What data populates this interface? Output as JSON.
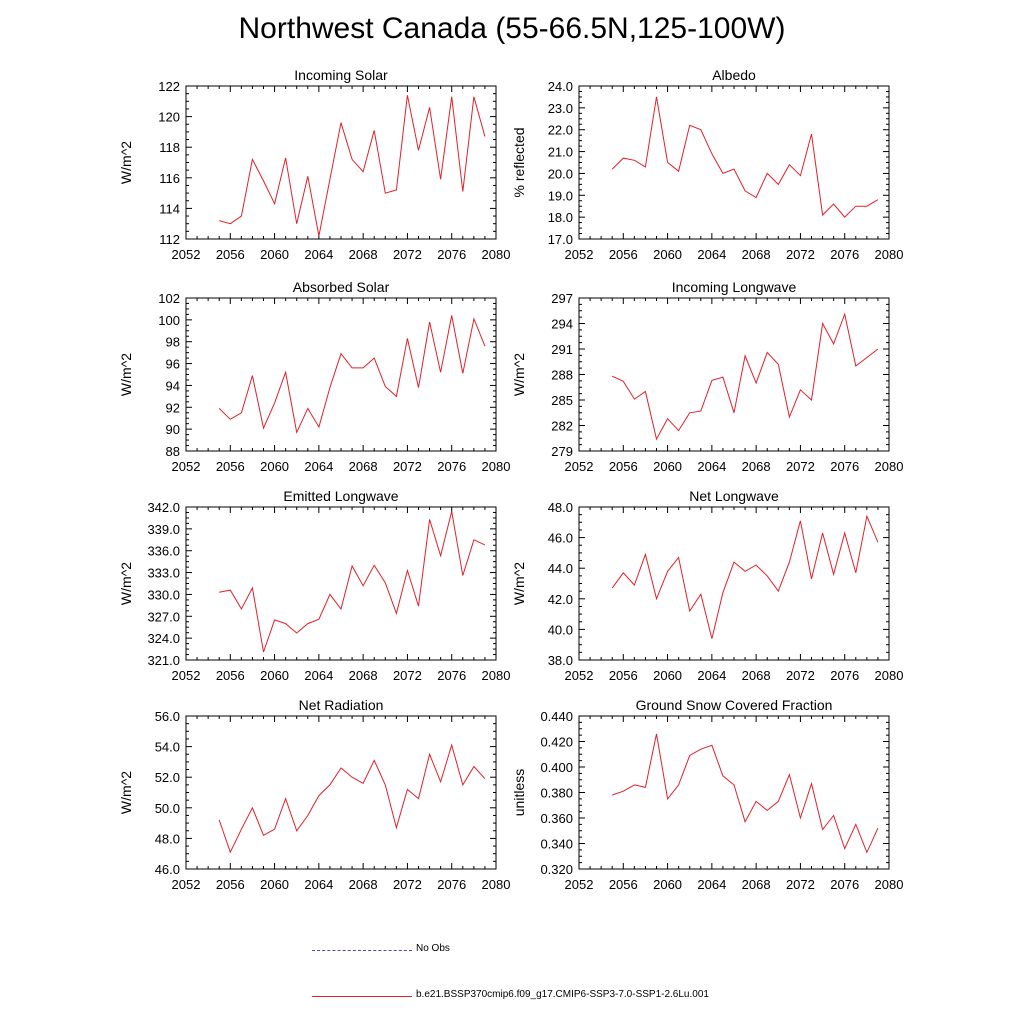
{
  "title": "Northwest Canada (55-66.5N,125-100W)",
  "legend": {
    "obs_label": "No Obs",
    "model_label": "b.e21.BSSP370cmip6.f09_g17.CMIP6-SSP3-7.0-SSP1-2.6Lu.001",
    "obs_color": "#4a4aa8",
    "model_color": "#e0212b"
  },
  "chart_data": [
    {
      "type": "line",
      "title": "Incoming Solar",
      "ylabel": "W/m^2",
      "xlim": [
        2052,
        2080
      ],
      "ylim": [
        112,
        122
      ],
      "xticks": [
        2052,
        2056,
        2060,
        2064,
        2068,
        2072,
        2076,
        2080
      ],
      "yticks": [
        "112",
        "114",
        "116",
        "118",
        "120",
        "122"
      ],
      "x": [
        2055,
        2056,
        2057,
        2058,
        2059,
        2060,
        2061,
        2062,
        2063,
        2064,
        2065,
        2066,
        2067,
        2068,
        2069,
        2070,
        2071,
        2072,
        2073,
        2074,
        2075,
        2076,
        2077,
        2078,
        2079
      ],
      "series": [
        {
          "values": [
            113.2,
            113.0,
            113.5,
            117.2,
            115.8,
            114.3,
            117.3,
            113.0,
            116.1,
            112.2,
            115.9,
            119.6,
            117.2,
            116.4,
            119.1,
            115.0,
            115.2,
            121.4,
            117.8,
            120.6,
            115.9,
            121.3,
            115.1,
            121.3,
            118.7
          ]
        }
      ]
    },
    {
      "type": "line",
      "title": "Albedo",
      "ylabel": "% reflected",
      "xlim": [
        2052,
        2080
      ],
      "ylim": [
        17.0,
        24.0
      ],
      "xticks": [
        2052,
        2056,
        2060,
        2064,
        2068,
        2072,
        2076,
        2080
      ],
      "yticks": [
        "17.0",
        "18.0",
        "19.0",
        "20.0",
        "21.0",
        "22.0",
        "23.0",
        "24.0"
      ],
      "x": [
        2055,
        2056,
        2057,
        2058,
        2059,
        2060,
        2061,
        2062,
        2063,
        2064,
        2065,
        2066,
        2067,
        2068,
        2069,
        2070,
        2071,
        2072,
        2073,
        2074,
        2075,
        2076,
        2077,
        2078,
        2079
      ],
      "series": [
        {
          "values": [
            20.2,
            20.7,
            20.6,
            20.3,
            23.5,
            20.5,
            20.1,
            22.2,
            22.0,
            20.9,
            20.0,
            20.2,
            19.2,
            18.9,
            20.0,
            19.5,
            20.4,
            19.9,
            21.8,
            18.1,
            18.6,
            18.0,
            18.5,
            18.5,
            18.8
          ]
        }
      ]
    },
    {
      "type": "line",
      "title": "Absorbed Solar",
      "ylabel": "W/m^2",
      "xlim": [
        2052,
        2080
      ],
      "ylim": [
        88,
        102
      ],
      "xticks": [
        2052,
        2056,
        2060,
        2064,
        2068,
        2072,
        2076,
        2080
      ],
      "yticks": [
        "88",
        "90",
        "92",
        "94",
        "96",
        "98",
        "100",
        "102"
      ],
      "x": [
        2055,
        2056,
        2057,
        2058,
        2059,
        2060,
        2061,
        2062,
        2063,
        2064,
        2065,
        2066,
        2067,
        2068,
        2069,
        2070,
        2071,
        2072,
        2073,
        2074,
        2075,
        2076,
        2077,
        2078,
        2079
      ],
      "series": [
        {
          "values": [
            91.9,
            90.9,
            91.5,
            94.9,
            90.1,
            92.4,
            95.2,
            89.7,
            91.9,
            90.2,
            93.8,
            96.9,
            95.6,
            95.6,
            96.5,
            93.9,
            93.0,
            98.3,
            93.8,
            99.8,
            95.2,
            100.4,
            95.1,
            100.1,
            97.6
          ]
        }
      ]
    },
    {
      "type": "line",
      "title": "Incoming Longwave",
      "ylabel": "W/m^2",
      "xlim": [
        2052,
        2080
      ],
      "ylim": [
        279,
        297
      ],
      "xticks": [
        2052,
        2056,
        2060,
        2064,
        2068,
        2072,
        2076,
        2080
      ],
      "yticks": [
        "279",
        "282",
        "285",
        "288",
        "291",
        "294",
        "297"
      ],
      "x": [
        2055,
        2056,
        2057,
        2058,
        2059,
        2060,
        2061,
        2062,
        2063,
        2064,
        2065,
        2066,
        2067,
        2068,
        2069,
        2070,
        2071,
        2072,
        2073,
        2074,
        2075,
        2076,
        2077,
        2078,
        2079
      ],
      "series": [
        {
          "values": [
            287.8,
            287.2,
            285.1,
            286.0,
            280.4,
            282.8,
            281.4,
            283.5,
            283.7,
            287.3,
            287.7,
            283.5,
            290.2,
            287.0,
            290.6,
            289.2,
            283.0,
            286.2,
            285.0,
            294.0,
            291.6,
            295.1,
            289.0,
            290.0,
            291.0
          ]
        }
      ]
    },
    {
      "type": "line",
      "title": "Emitted Longwave",
      "ylabel": "W/m^2",
      "xlim": [
        2052,
        2080
      ],
      "ylim": [
        321.0,
        342.0
      ],
      "xticks": [
        2052,
        2056,
        2060,
        2064,
        2068,
        2072,
        2076,
        2080
      ],
      "yticks": [
        "321.0",
        "324.0",
        "327.0",
        "330.0",
        "333.0",
        "336.0",
        "339.0",
        "342.0"
      ],
      "x": [
        2055,
        2056,
        2057,
        2058,
        2059,
        2060,
        2061,
        2062,
        2063,
        2064,
        2065,
        2066,
        2067,
        2068,
        2069,
        2070,
        2071,
        2072,
        2073,
        2074,
        2075,
        2076,
        2077,
        2078,
        2079
      ],
      "series": [
        {
          "values": [
            330.3,
            330.6,
            328.0,
            330.9,
            322.1,
            326.5,
            326.0,
            324.7,
            326.0,
            326.6,
            330.0,
            328.0,
            333.9,
            331.2,
            334.0,
            331.6,
            327.4,
            333.3,
            328.4,
            340.3,
            335.3,
            341.4,
            332.6,
            337.5,
            336.8
          ]
        }
      ]
    },
    {
      "type": "line",
      "title": "Net Longwave",
      "ylabel": "W/m^2",
      "xlim": [
        2052,
        2080
      ],
      "ylim": [
        38.0,
        48.0
      ],
      "xticks": [
        2052,
        2056,
        2060,
        2064,
        2068,
        2072,
        2076,
        2080
      ],
      "yticks": [
        "38.0",
        "40.0",
        "42.0",
        "44.0",
        "46.0",
        "48.0"
      ],
      "x": [
        2055,
        2056,
        2057,
        2058,
        2059,
        2060,
        2061,
        2062,
        2063,
        2064,
        2065,
        2066,
        2067,
        2068,
        2069,
        2070,
        2071,
        2072,
        2073,
        2074,
        2075,
        2076,
        2077,
        2078,
        2079
      ],
      "series": [
        {
          "values": [
            42.7,
            43.7,
            42.9,
            44.9,
            42.0,
            43.8,
            44.7,
            41.2,
            42.3,
            39.4,
            42.4,
            44.4,
            43.8,
            44.2,
            43.5,
            42.5,
            44.4,
            47.1,
            43.3,
            46.3,
            43.6,
            46.3,
            43.7,
            47.4,
            45.7
          ]
        }
      ]
    },
    {
      "type": "line",
      "title": "Net Radiation",
      "ylabel": "W/m^2",
      "xlim": [
        2052,
        2080
      ],
      "ylim": [
        46.0,
        56.0
      ],
      "xticks": [
        2052,
        2056,
        2060,
        2064,
        2068,
        2072,
        2076,
        2080
      ],
      "yticks": [
        "46.0",
        "48.0",
        "50.0",
        "52.0",
        "54.0",
        "56.0"
      ],
      "x": [
        2055,
        2056,
        2057,
        2058,
        2059,
        2060,
        2061,
        2062,
        2063,
        2064,
        2065,
        2066,
        2067,
        2068,
        2069,
        2070,
        2071,
        2072,
        2073,
        2074,
        2075,
        2076,
        2077,
        2078,
        2079
      ],
      "series": [
        {
          "values": [
            49.2,
            47.1,
            48.6,
            50.0,
            48.2,
            48.6,
            50.6,
            48.5,
            49.5,
            50.8,
            51.5,
            52.6,
            52.0,
            51.6,
            53.1,
            51.5,
            48.7,
            51.2,
            50.6,
            53.5,
            51.7,
            54.1,
            51.5,
            52.7,
            51.9
          ]
        }
      ]
    },
    {
      "type": "line",
      "title": "Ground Snow Covered Fraction",
      "ylabel": "unitless",
      "xlim": [
        2052,
        2080
      ],
      "ylim": [
        0.32,
        0.44
      ],
      "xticks": [
        2052,
        2056,
        2060,
        2064,
        2068,
        2072,
        2076,
        2080
      ],
      "yticks": [
        "0.320",
        "0.340",
        "0.360",
        "0.380",
        "0.400",
        "0.420",
        "0.440"
      ],
      "x": [
        2055,
        2056,
        2057,
        2058,
        2059,
        2060,
        2061,
        2062,
        2063,
        2064,
        2065,
        2066,
        2067,
        2068,
        2069,
        2070,
        2071,
        2072,
        2073,
        2074,
        2075,
        2076,
        2077,
        2078,
        2079
      ],
      "series": [
        {
          "values": [
            0.378,
            0.381,
            0.386,
            0.384,
            0.426,
            0.375,
            0.386,
            0.409,
            0.414,
            0.417,
            0.393,
            0.386,
            0.357,
            0.373,
            0.366,
            0.373,
            0.394,
            0.36,
            0.387,
            0.351,
            0.362,
            0.336,
            0.355,
            0.333,
            0.352
          ]
        }
      ]
    }
  ]
}
